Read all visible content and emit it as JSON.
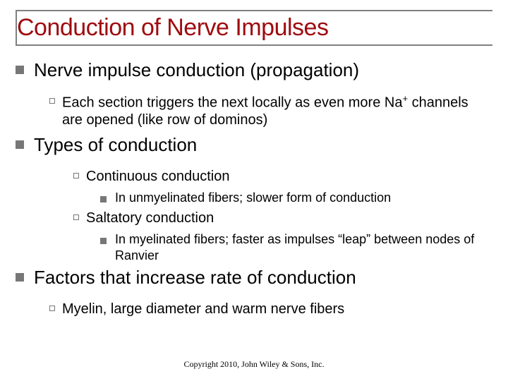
{
  "title": "Conduction of Nerve Impulses",
  "colors": {
    "title": "#9e0b0f",
    "rule": "#808080",
    "bullet": "#777777",
    "background": "#ffffff",
    "text": "#000000"
  },
  "fonts": {
    "title_size": 34,
    "lvl1_size": 26,
    "lvl2_size": 20,
    "lvl3_size": 20,
    "lvl4_size": 18,
    "footer_size": 12
  },
  "bullets": [
    {
      "text": "Nerve impulse conduction (propagation)",
      "children": [
        {
          "text_html": "Each section triggers the next locally as even more Na<sup class='sup'>+</sup> channels are opened (like row of dominos)"
        }
      ]
    },
    {
      "text": "Types of conduction",
      "children": [
        {
          "text": "Continuous conduction",
          "children": [
            {
              "text": "In unmyelinated fibers; slower form of conduction"
            }
          ]
        },
        {
          "text": "Saltatory conduction",
          "children": [
            {
              "text": "In myelinated fibers; faster as impulses “leap” between nodes of Ranvier"
            }
          ]
        }
      ]
    },
    {
      "text": "Factors that increase rate of conduction",
      "children": [
        {
          "text": "Myelin, large diameter and warm nerve fibers"
        }
      ]
    }
  ],
  "footer": "Copyright 2010, John Wiley & Sons, Inc."
}
